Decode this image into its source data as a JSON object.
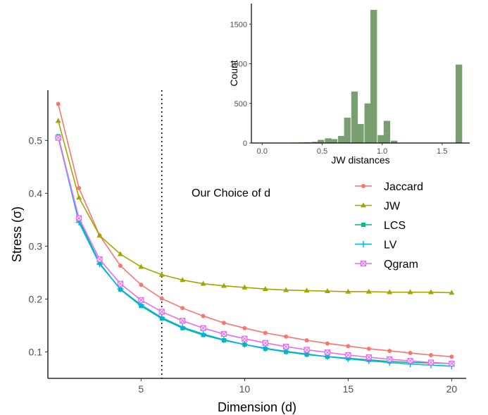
{
  "chart_data": [
    {
      "type": "line",
      "xlabel": "Dimension (d)",
      "ylabel": "Stress (σ)",
      "xlim": [
        0.5,
        20.7
      ],
      "ylim": [
        0.05,
        0.595
      ],
      "xticks": [
        5,
        10,
        15,
        20
      ],
      "yticks": [
        0.1,
        0.2,
        0.3,
        0.4,
        0.5
      ],
      "xtick_labels": [
        "5",
        "10",
        "15",
        "20"
      ],
      "ytick_labels": [
        "0.1",
        "0.2",
        "0.3",
        "0.4",
        "0.5"
      ],
      "grid": false,
      "legend_position": "right",
      "annotation": {
        "text": "Our Choice of d",
        "x": 6
      },
      "x": [
        1,
        2,
        3,
        4,
        5,
        6,
        7,
        8,
        9,
        10,
        11,
        12,
        13,
        14,
        15,
        16,
        17,
        18,
        19,
        20
      ],
      "series": [
        {
          "name": "Jaccard",
          "color": "#F8766D",
          "marker": "circle",
          "values": [
            0.569,
            0.41,
            0.32,
            0.263,
            0.227,
            0.201,
            0.183,
            0.168,
            0.155,
            0.145,
            0.136,
            0.129,
            0.122,
            0.116,
            0.111,
            0.106,
            0.102,
            0.098,
            0.094,
            0.091
          ]
        },
        {
          "name": "JW",
          "color": "#A3A500",
          "marker": "triangle",
          "values": [
            0.537,
            0.392,
            0.32,
            0.285,
            0.261,
            0.246,
            0.236,
            0.229,
            0.225,
            0.222,
            0.219,
            0.217,
            0.216,
            0.215,
            0.214,
            0.214,
            0.213,
            0.213,
            0.213,
            0.212
          ]
        },
        {
          "name": "LCS",
          "color": "#00BF7D",
          "marker": "square",
          "values": [
            0.508,
            0.35,
            0.268,
            0.218,
            0.187,
            0.163,
            0.145,
            0.132,
            0.122,
            0.114,
            0.106,
            0.1,
            0.095,
            0.091,
            0.088,
            0.085,
            0.082,
            0.08,
            0.079,
            0.078
          ]
        },
        {
          "name": "LV",
          "color": "#00B0F6",
          "marker": "plus",
          "values": [
            0.506,
            0.345,
            0.266,
            0.219,
            0.189,
            0.165,
            0.147,
            0.134,
            0.123,
            0.114,
            0.107,
            0.101,
            0.096,
            0.091,
            0.087,
            0.083,
            0.08,
            0.077,
            0.075,
            0.073
          ]
        },
        {
          "name": "Qgram",
          "color": "#E76BF3",
          "marker": "boxx",
          "values": [
            0.505,
            0.353,
            0.275,
            0.229,
            0.198,
            0.176,
            0.159,
            0.145,
            0.134,
            0.125,
            0.117,
            0.11,
            0.104,
            0.099,
            0.094,
            0.09,
            0.086,
            0.083,
            0.08,
            0.078
          ]
        }
      ]
    },
    {
      "type": "bar",
      "subtype": "histogram",
      "xlabel": "JW distances",
      "ylabel": "Count",
      "xlim": [
        -0.09,
        1.73
      ],
      "ylim": [
        0,
        1760
      ],
      "xticks": [
        0.0,
        0.5,
        1.0,
        1.5
      ],
      "yticks": [
        0,
        500,
        1000,
        1500
      ],
      "xtick_labels": [
        "0.0",
        "0.5",
        "1.0",
        "1.5"
      ],
      "ytick_labels": [
        "0",
        "500",
        "1000",
        "1500"
      ],
      "bin_width": 0.0547,
      "color": "#789F6F",
      "bins": [
        {
          "x": 0.0,
          "count": 2
        },
        {
          "x": 0.055,
          "count": 2
        },
        {
          "x": 0.11,
          "count": 3
        },
        {
          "x": 0.16,
          "count": 3
        },
        {
          "x": 0.22,
          "count": 4
        },
        {
          "x": 0.27,
          "count": 6
        },
        {
          "x": 0.33,
          "count": 8
        },
        {
          "x": 0.38,
          "count": 10
        },
        {
          "x": 0.44,
          "count": 15
        },
        {
          "x": 0.49,
          "count": 40
        },
        {
          "x": 0.55,
          "count": 60
        },
        {
          "x": 0.6,
          "count": 50
        },
        {
          "x": 0.66,
          "count": 90
        },
        {
          "x": 0.71,
          "count": 320
        },
        {
          "x": 0.77,
          "count": 650
        },
        {
          "x": 0.82,
          "count": 240
        },
        {
          "x": 0.88,
          "count": 500
        },
        {
          "x": 0.93,
          "count": 1680
        },
        {
          "x": 0.99,
          "count": 100
        },
        {
          "x": 1.04,
          "count": 280
        },
        {
          "x": 1.1,
          "count": 30
        },
        {
          "x": 1.64,
          "count": 990
        }
      ]
    }
  ]
}
